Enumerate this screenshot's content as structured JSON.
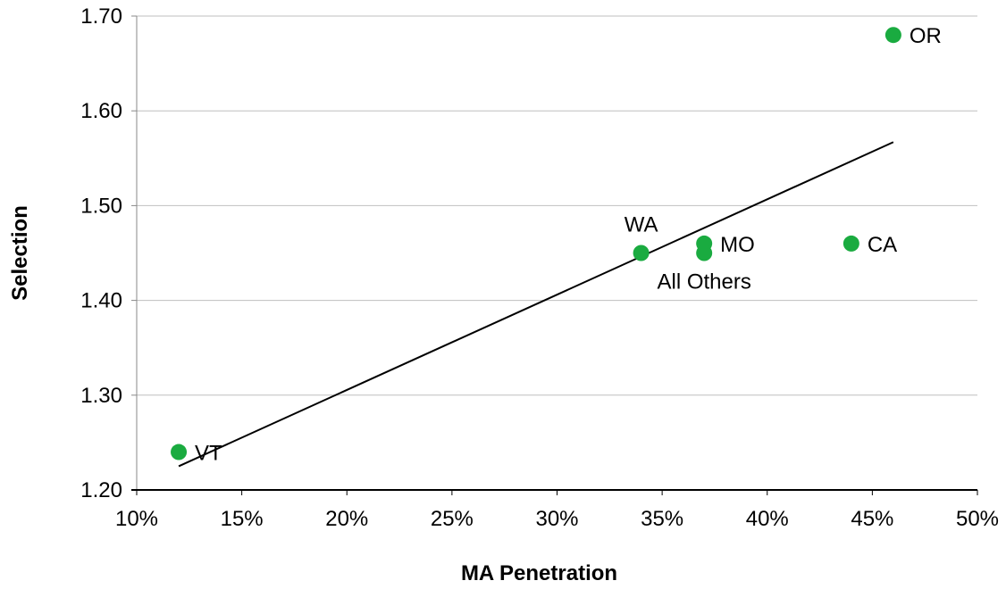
{
  "chart_data": {
    "type": "scatter",
    "xlabel": "MA Penetration",
    "ylabel": "Selection",
    "xlim": [
      0.1,
      0.5
    ],
    "ylim": [
      1.2,
      1.7
    ],
    "x_ticks": [
      "10%",
      "15%",
      "20%",
      "25%",
      "30%",
      "35%",
      "40%",
      "45%",
      "50%"
    ],
    "y_ticks": [
      "1.20",
      "1.30",
      "1.40",
      "1.50",
      "1.60",
      "1.70"
    ],
    "grid": "horizontal",
    "marker_color": "#1aab40",
    "points": [
      {
        "label": "VT",
        "x": 0.12,
        "y": 1.24,
        "label_pos": "right"
      },
      {
        "label": "WA",
        "x": 0.34,
        "y": 1.45,
        "label_pos": "above"
      },
      {
        "label": "MO",
        "x": 0.37,
        "y": 1.46,
        "label_pos": "right"
      },
      {
        "label": "All Others",
        "x": 0.37,
        "y": 1.45,
        "label_pos": "below"
      },
      {
        "label": "CA",
        "x": 0.44,
        "y": 1.46,
        "label_pos": "right"
      },
      {
        "label": "OR",
        "x": 0.46,
        "y": 1.68,
        "label_pos": "right"
      }
    ],
    "trendline": {
      "x": [
        0.12,
        0.46
      ],
      "y": [
        1.225,
        1.567
      ]
    }
  }
}
